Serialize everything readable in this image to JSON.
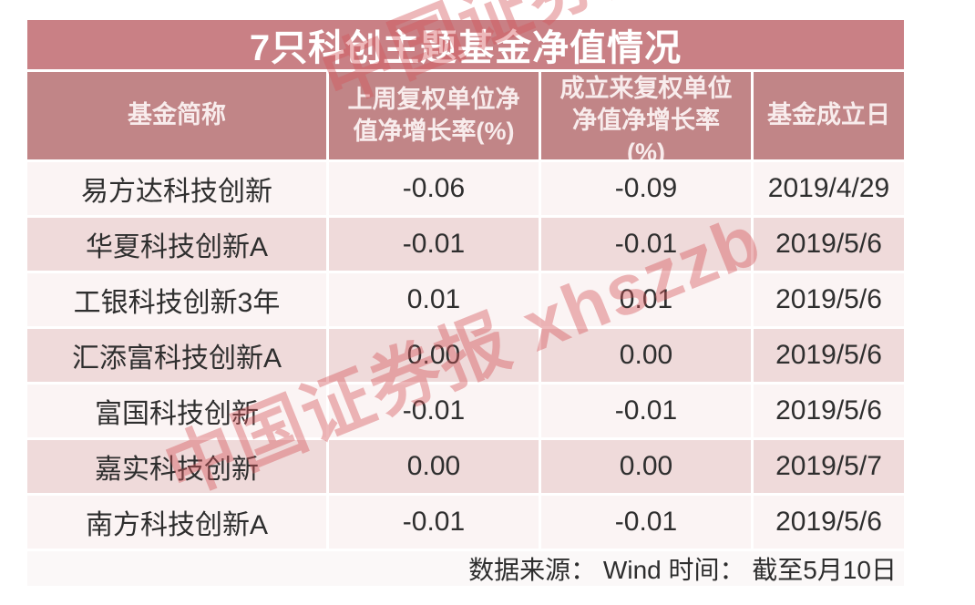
{
  "chart_data": {
    "type": "table",
    "title": "7只科创主题基金净值情况",
    "columns": [
      "基金简称",
      "上周复权单位净值净增长率(%)",
      "成立来复权单位净值净增长率(%)",
      "基金成立日"
    ],
    "column_display": [
      "基金简称",
      "上周复权单位净\n值净增长率(%)",
      "成立来复权单位\n净值净增长率\n(%)",
      "基金成立日"
    ],
    "rows": [
      [
        "易方达科技创新",
        "-0.06",
        "-0.09",
        "2019/4/29"
      ],
      [
        "华夏科技创新A",
        "-0.01",
        "-0.01",
        "2019/5/6"
      ],
      [
        "工银科技创新3年",
        "0.01",
        "0.01",
        "2019/5/6"
      ],
      [
        "汇添富科技创新A",
        "0.00",
        "0.00",
        "2019/5/6"
      ],
      [
        "富国科技创新",
        "-0.01",
        "-0.01",
        "2019/5/6"
      ],
      [
        "嘉实科技创新",
        "0.00",
        "0.00",
        "2019/5/7"
      ],
      [
        "南方科技创新A",
        "-0.01",
        "-0.01",
        "2019/5/6"
      ]
    ],
    "footer": "数据来源： Wind 时间： 截至5月10日",
    "watermark": "中国证券报 xhszzb"
  },
  "colors": {
    "title_bg": "#c98085",
    "header_bg": "#c18587",
    "row_light": "#fbf4f4",
    "row_pink": "#efdada",
    "footer_bg": "#fbf8f8",
    "text_dark": "#2e2e2e",
    "title_text": "#ffffff",
    "watermark_color": "rgba(213,85,90,0.42)"
  }
}
